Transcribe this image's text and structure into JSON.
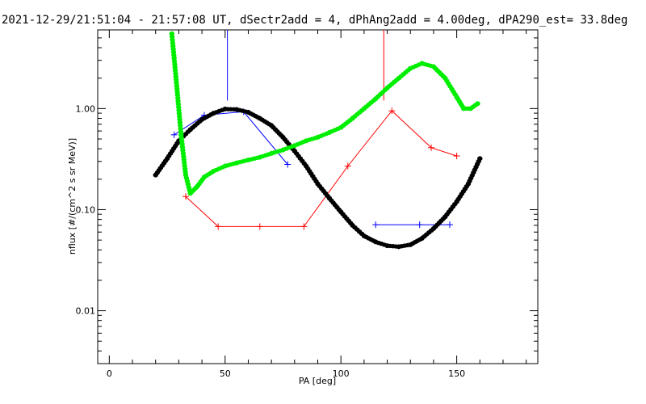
{
  "chart_data": {
    "type": "scatter",
    "title": "2021-12-29/21:51:04 - 21:57:08 UT, dSectr2add = 4, dPhAng2add = 4.00deg, dPA290_est=  33.8deg",
    "xlabel": "PA [deg]",
    "ylabel": "nflux [#/(cm^2 s sr MeV)]",
    "xlim": [
      -5,
      185
    ],
    "ylim": [
      0.003,
      6.0
    ],
    "yscale": "log",
    "grid": false,
    "legend": "none",
    "x_ticks": [
      {
        "value": 0,
        "label": "0"
      },
      {
        "value": 50,
        "label": "50"
      },
      {
        "value": 100,
        "label": "100"
      },
      {
        "value": 150,
        "label": "150"
      }
    ],
    "y_ticks": [
      {
        "value": 0.01,
        "label": "0.01"
      },
      {
        "value": 0.1,
        "label": "0.10"
      },
      {
        "value": 1.0,
        "label": "1.00"
      }
    ],
    "series": [
      {
        "color": "#0000ff",
        "style": "line-plus",
        "x": [
          28,
          41,
          58,
          77
        ],
        "y": [
          0.55,
          0.86,
          0.93,
          0.28
        ]
      },
      {
        "color": "#0000ff",
        "style": "line-plus",
        "x": [
          115,
          134,
          147
        ],
        "y": [
          0.071,
          0.071,
          0.071
        ]
      },
      {
        "color": "#0000ff",
        "style": "error-bar",
        "x": [
          51,
          51
        ],
        "y": [
          1.2,
          6.0
        ]
      },
      {
        "color": "#ff0000",
        "style": "line-plus",
        "x": [
          33,
          47,
          65,
          84,
          103,
          122,
          139,
          150
        ],
        "y": [
          0.135,
          0.068,
          0.068,
          0.068,
          0.27,
          0.95,
          0.41,
          0.34
        ]
      },
      {
        "color": "#ff0000",
        "style": "error-bar",
        "x": [
          118.5,
          118.5
        ],
        "y": [
          1.2,
          6.0
        ]
      },
      {
        "color": "#000000",
        "style": "thick-dots",
        "x": [
          20,
          25,
          30,
          35,
          40,
          45,
          50,
          55,
          60,
          65,
          70,
          75,
          80,
          85,
          90,
          95,
          100,
          105,
          110,
          115,
          120,
          125,
          130,
          135,
          140,
          145,
          150,
          155,
          160
        ],
        "y": [
          0.22,
          0.32,
          0.48,
          0.62,
          0.78,
          0.9,
          0.99,
          0.98,
          0.92,
          0.8,
          0.68,
          0.52,
          0.38,
          0.27,
          0.18,
          0.13,
          0.095,
          0.07,
          0.055,
          0.048,
          0.044,
          0.043,
          0.045,
          0.052,
          0.065,
          0.085,
          0.12,
          0.18,
          0.32
        ]
      },
      {
        "color": "#00ee00",
        "style": "thick-dots",
        "x": [
          27,
          29,
          31,
          33,
          35,
          38,
          41,
          45,
          50,
          55,
          60,
          65,
          70,
          75,
          80,
          85,
          90,
          95,
          100,
          105,
          110,
          115,
          120,
          125,
          130,
          135,
          140,
          145,
          150,
          153,
          156,
          159
        ],
        "y": [
          5.5,
          1.8,
          0.55,
          0.22,
          0.145,
          0.17,
          0.21,
          0.24,
          0.27,
          0.29,
          0.31,
          0.33,
          0.36,
          0.39,
          0.43,
          0.48,
          0.52,
          0.58,
          0.65,
          0.8,
          1.0,
          1.25,
          1.6,
          2.0,
          2.5,
          2.8,
          2.6,
          2.0,
          1.3,
          1.0,
          1.0,
          1.12
        ]
      }
    ]
  }
}
